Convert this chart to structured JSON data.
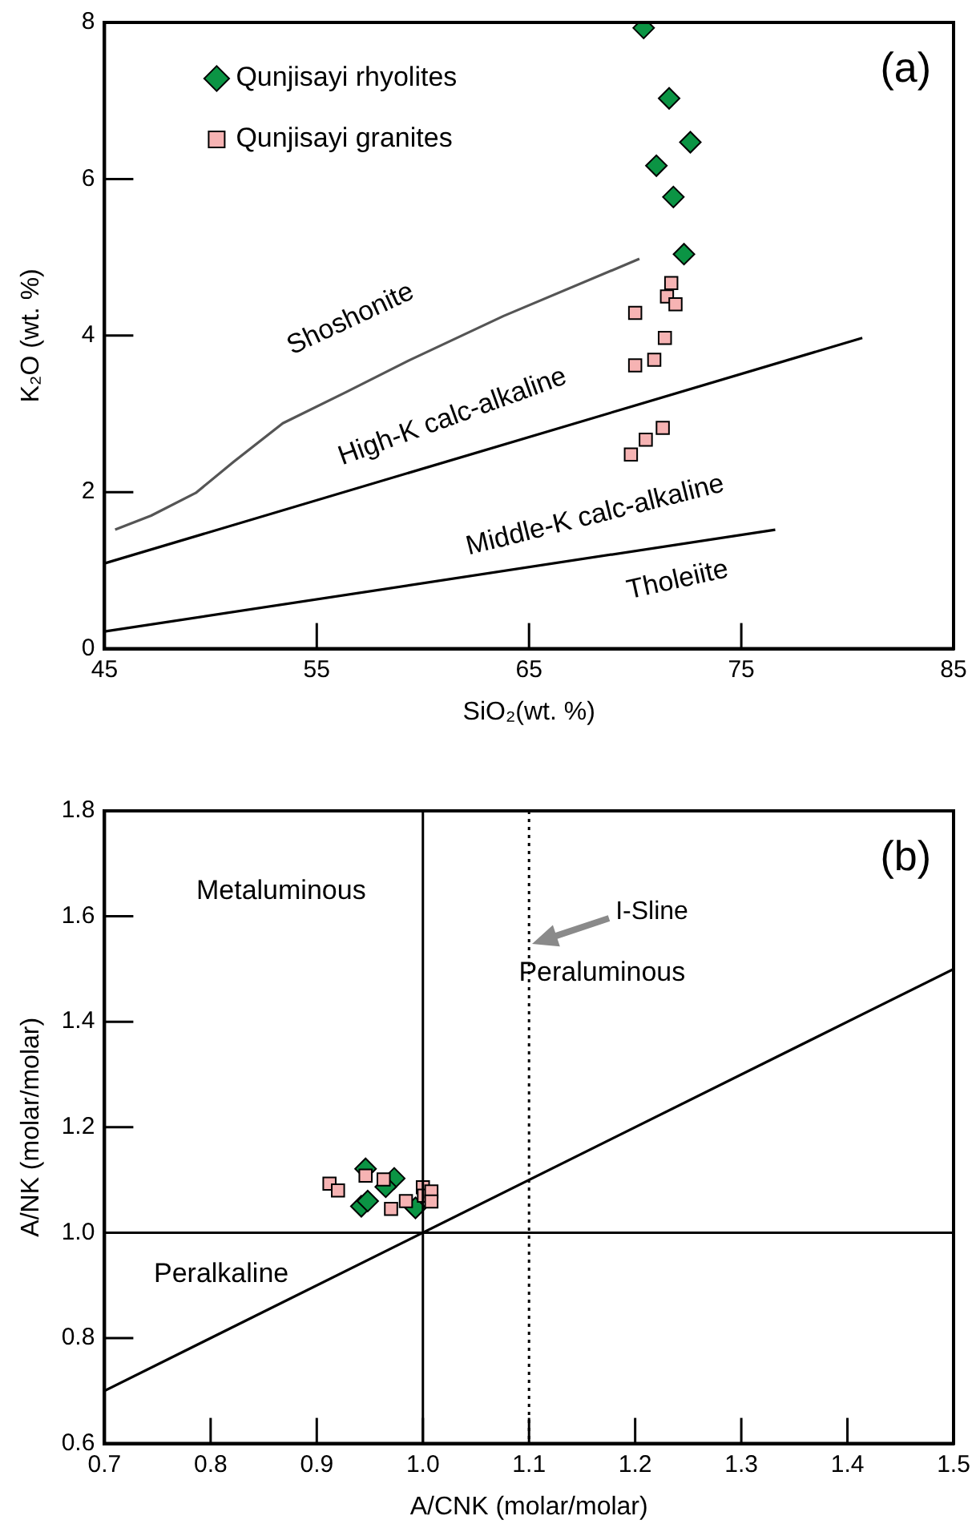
{
  "chart_data": [
    {
      "type": "scatter",
      "xlabel": "SiO₂(wt. %)",
      "ylabel": "K₂O (wt. %)",
      "xlim": [
        45,
        85
      ],
      "xticks": [
        45,
        55,
        65,
        75,
        85
      ],
      "ylim": [
        0,
        8
      ],
      "yticks": [
        0,
        2,
        4,
        6,
        8
      ],
      "grid": false,
      "legend": "top left",
      "series": [
        {
          "name": "Qunjisayi rhyolites",
          "color": "#0b9444",
          "marker": "diamond",
          "x": [
            70.4,
            71.6,
            72.6,
            71.0,
            71.8,
            72.3
          ],
          "values": [
            7.93,
            7.03,
            6.47,
            6.17,
            5.77,
            5.04
          ]
        },
        {
          "name": "Qunjisayi granites",
          "color": "#f6b3b3",
          "marker": "square",
          "x": [
            71.7,
            71.5,
            71.9,
            70.0,
            71.4,
            70.9,
            70.0,
            71.3,
            70.5,
            69.8
          ],
          "values": [
            4.67,
            4.5,
            4.4,
            4.29,
            3.97,
            3.69,
            3.62,
            2.82,
            2.67,
            2.48
          ]
        },
        {
          "type": "line",
          "color": "#555555",
          "marker": "none",
          "x": [
            45.5,
            47.2,
            49.3,
            51.1,
            53.4,
            56.4,
            59.4,
            63.8,
            70.2
          ],
          "values": [
            1.52,
            1.7,
            1.99,
            2.39,
            2.88,
            3.28,
            3.69,
            4.25,
            4.98
          ]
        },
        {
          "type": "line",
          "color": "#000000",
          "marker": "none",
          "x": [
            45,
            80.7
          ],
          "values": [
            1.09,
            3.97
          ]
        },
        {
          "type": "line",
          "color": "#000000",
          "marker": "none",
          "x": [
            45,
            76.6
          ],
          "values": [
            0.22,
            1.52
          ]
        }
      ],
      "annotations": [
        "(a)",
        "Shoshonite",
        "High-K calc-alkaline",
        "Middle-K calc-alkaline",
        "Tholeiite"
      ]
    },
    {
      "type": "scatter",
      "xlabel": "A/CNK (molar/molar)",
      "ylabel": "A/NK (molar/molar)",
      "xlim": [
        0.7,
        1.5
      ],
      "xticks": [
        {
          "value": 0.7,
          "label": "0.7"
        },
        {
          "value": 0.8,
          "label": "0.8"
        },
        {
          "value": 0.9,
          "label": "0.9"
        },
        {
          "value": 1.0,
          "label": "1.0"
        },
        {
          "value": 1.1,
          "label": "1.1"
        },
        {
          "value": 1.2,
          "label": "1.2"
        },
        {
          "value": 1.3,
          "label": "1.3"
        },
        {
          "value": 1.4,
          "label": "1.4"
        },
        {
          "value": 1.5,
          "label": "1.5"
        }
      ],
      "ylim": [
        0.6,
        1.8
      ],
      "yticks": [
        {
          "value": 0.6,
          "label": "0.6"
        },
        {
          "value": 0.8,
          "label": "0.8"
        },
        {
          "value": 1.0,
          "label": "1.0"
        },
        {
          "value": 1.2,
          "label": "1.2"
        },
        {
          "value": 1.4,
          "label": "1.4"
        },
        {
          "value": 1.6,
          "label": "1.6"
        },
        {
          "value": 1.8,
          "label": "1.8"
        }
      ],
      "grid": false,
      "series": [
        {
          "type": "line",
          "color": "#000000",
          "marker": "none",
          "x": [
            0.7,
            1.5
          ],
          "values": [
            0.7,
            1.5
          ]
        },
        {
          "color": "#f6b3b3",
          "marker": "square",
          "x": [
            0.912,
            0.92,
            0.946,
            0.963,
            0.97,
            0.984,
            1.0,
            1.001,
            1.008,
            1.008
          ],
          "values": [
            1.093,
            1.08,
            1.108,
            1.101,
            1.045,
            1.06,
            1.086,
            1.07,
            1.078,
            1.059
          ]
        },
        {
          "color": "#0b9444",
          "marker": "diamond",
          "x": [
            0.946,
            0.973,
            0.965,
            0.942,
            0.948,
            0.993
          ],
          "values": [
            1.121,
            1.103,
            1.087,
            1.05,
            1.06,
            1.047
          ]
        }
      ],
      "ref_lines": [
        {
          "axis": "x",
          "value": 1.0,
          "color": "#000000"
        },
        {
          "axis": "y",
          "value": 1.0,
          "color": "#000000"
        },
        {
          "axis": "x",
          "value": 1.1,
          "label": "I-Sline",
          "color": "#000000",
          "line_style": "dotted"
        }
      ],
      "annotations": [
        "(b)",
        "Metaluminous",
        "Peraluminous",
        "Peralkaline"
      ]
    }
  ]
}
